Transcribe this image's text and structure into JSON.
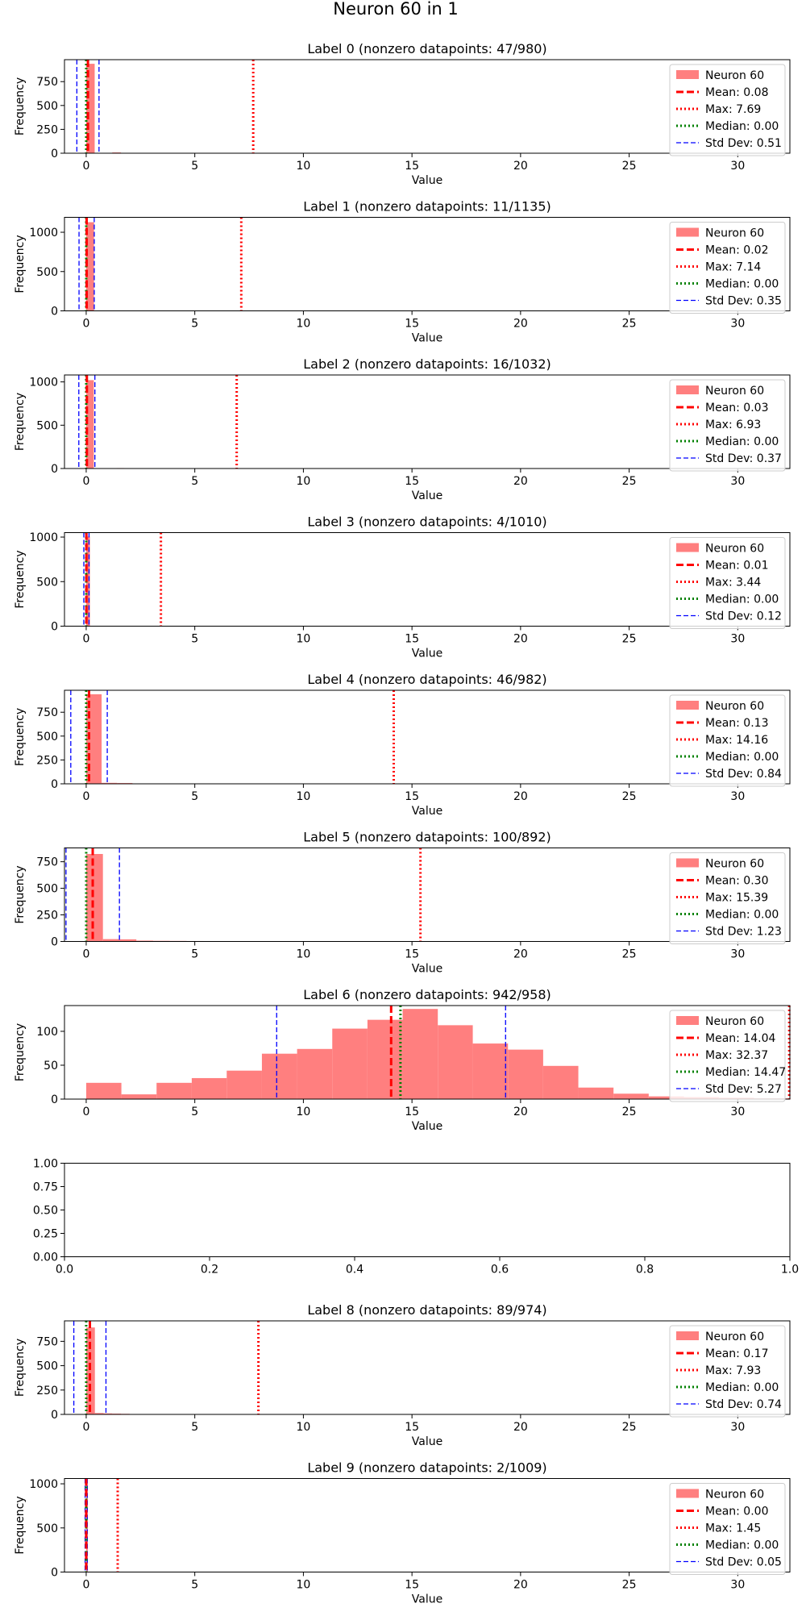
{
  "figure": {
    "suptitle": "Neuron 60 in 1",
    "colors": {
      "bar": "#ff7f7f",
      "mean": "#ff0000",
      "max": "#ff0000",
      "median": "#008000",
      "std": "#0000ff",
      "axis": "#000000",
      "legend_border": "#cccccc"
    }
  },
  "chart_data": [
    {
      "type": "bar",
      "title": "Label 0 (nonzero datapoints: 47/980)",
      "xlabel": "Value",
      "ylabel": "Frequency",
      "xlim": [
        -1,
        32.4
      ],
      "ylim": [
        0,
        980
      ],
      "xticks": [
        0,
        5,
        10,
        15,
        20,
        25,
        30
      ],
      "yticks": [
        0,
        250,
        500,
        750
      ],
      "bin_width": 0.39,
      "bars": [
        {
          "x0": 0.0,
          "x1": 0.39,
          "height": 937
        },
        {
          "x0": 1.2,
          "x1": 1.6,
          "height": 8
        },
        {
          "x0": 1.6,
          "x1": 2.0,
          "height": 4
        }
      ],
      "stats": {
        "mean": 0.08,
        "max": 7.69,
        "median": 0.0,
        "std": 0.51
      },
      "legend": {
        "location": "upper right",
        "entries": [
          "Neuron 60",
          "Mean: 0.08",
          "Max: 7.69",
          "Median: 0.00",
          "Std Dev: 0.51"
        ]
      }
    },
    {
      "type": "bar",
      "title": "Label 1 (nonzero datapoints: 11/1135)",
      "xlabel": "Value",
      "ylabel": "Frequency",
      "xlim": [
        -1,
        32.4
      ],
      "ylim": [
        0,
        1190
      ],
      "xticks": [
        0,
        5,
        10,
        15,
        20,
        25,
        30
      ],
      "yticks": [
        0,
        500,
        1000
      ],
      "bin_width": 0.36,
      "bars": [
        {
          "x0": 0.0,
          "x1": 0.36,
          "height": 1128
        }
      ],
      "stats": {
        "mean": 0.02,
        "max": 7.14,
        "median": 0.0,
        "std": 0.35
      },
      "legend": {
        "location": "upper right",
        "entries": [
          "Neuron 60",
          "Mean: 0.02",
          "Max: 7.14",
          "Median: 0.00",
          "Std Dev: 0.35"
        ]
      }
    },
    {
      "type": "bar",
      "title": "Label 2 (nonzero datapoints: 16/1032)",
      "xlabel": "Value",
      "ylabel": "Frequency",
      "xlim": [
        -1,
        32.4
      ],
      "ylim": [
        0,
        1080
      ],
      "xticks": [
        0,
        5,
        10,
        15,
        20,
        25,
        30
      ],
      "yticks": [
        0,
        500,
        1000
      ],
      "bin_width": 0.35,
      "bars": [
        {
          "x0": 0.0,
          "x1": 0.35,
          "height": 1020
        },
        {
          "x0": 1.4,
          "x1": 1.75,
          "height": 5
        }
      ],
      "stats": {
        "mean": 0.03,
        "max": 6.93,
        "median": 0.0,
        "std": 0.37
      },
      "legend": {
        "location": "upper right",
        "entries": [
          "Neuron 60",
          "Mean: 0.03",
          "Max: 6.93",
          "Median: 0.00",
          "Std Dev: 0.37"
        ]
      }
    },
    {
      "type": "bar",
      "title": "Label 3 (nonzero datapoints: 4/1010)",
      "xlabel": "Value",
      "ylabel": "Frequency",
      "xlim": [
        -1,
        32.4
      ],
      "ylim": [
        0,
        1050
      ],
      "xticks": [
        0,
        5,
        10,
        15,
        20,
        25,
        30
      ],
      "yticks": [
        0,
        500,
        1000
      ],
      "bin_width": 0.17,
      "bars": [
        {
          "x0": 0.0,
          "x1": 0.17,
          "height": 1006
        },
        {
          "x0": 1.4,
          "x1": 1.6,
          "height": 2
        },
        {
          "x0": 3.3,
          "x1": 3.45,
          "height": 2
        }
      ],
      "stats": {
        "mean": 0.01,
        "max": 3.44,
        "median": 0.0,
        "std": 0.12
      },
      "legend": {
        "location": "upper right",
        "entries": [
          "Neuron 60",
          "Mean: 0.01",
          "Max: 3.44",
          "Median: 0.00",
          "Std Dev: 0.12"
        ]
      }
    },
    {
      "type": "bar",
      "title": "Label 4 (nonzero datapoints: 46/982)",
      "xlabel": "Value",
      "ylabel": "Frequency",
      "xlim": [
        -1,
        32.4
      ],
      "ylim": [
        0,
        980
      ],
      "xticks": [
        0,
        5,
        10,
        15,
        20,
        25,
        30
      ],
      "yticks": [
        0,
        250,
        500,
        750
      ],
      "bin_width": 0.71,
      "bars": [
        {
          "x0": 0.0,
          "x1": 0.71,
          "height": 938
        },
        {
          "x0": 0.71,
          "x1": 1.42,
          "height": 10
        },
        {
          "x0": 1.42,
          "x1": 2.13,
          "height": 8
        },
        {
          "x0": 2.13,
          "x1": 2.84,
          "height": 3
        }
      ],
      "stats": {
        "mean": 0.13,
        "max": 14.16,
        "median": 0.0,
        "std": 0.84
      },
      "legend": {
        "location": "upper right",
        "entries": [
          "Neuron 60",
          "Mean: 0.13",
          "Max: 14.16",
          "Median: 0.00",
          "Std Dev: 0.84"
        ]
      }
    },
    {
      "type": "bar",
      "title": "Label 5 (nonzero datapoints: 100/892)",
      "xlabel": "Value",
      "ylabel": "Frequency",
      "xlim": [
        -1,
        32.4
      ],
      "ylim": [
        0,
        880
      ],
      "xticks": [
        0,
        5,
        10,
        15,
        20,
        25,
        30
      ],
      "yticks": [
        0,
        250,
        500,
        750
      ],
      "bin_width": 0.77,
      "bars": [
        {
          "x0": 0.0,
          "x1": 0.77,
          "height": 823
        },
        {
          "x0": 0.77,
          "x1": 1.54,
          "height": 22
        },
        {
          "x0": 1.54,
          "x1": 2.31,
          "height": 20
        },
        {
          "x0": 2.31,
          "x1": 3.08,
          "height": 8
        },
        {
          "x0": 3.08,
          "x1": 3.85,
          "height": 6
        },
        {
          "x0": 3.85,
          "x1": 4.62,
          "height": 5
        },
        {
          "x0": 4.62,
          "x1": 5.39,
          "height": 4
        },
        {
          "x0": 6.16,
          "x1": 6.93,
          "height": 3
        }
      ],
      "stats": {
        "mean": 0.3,
        "max": 15.39,
        "median": 0.0,
        "std": 1.23
      },
      "legend": {
        "location": "upper right",
        "entries": [
          "Neuron 60",
          "Mean: 0.30",
          "Max: 15.39",
          "Median: 0.00",
          "Std Dev: 1.23"
        ]
      }
    },
    {
      "type": "bar",
      "title": "Label 6 (nonzero datapoints: 942/958)",
      "xlabel": "Value",
      "ylabel": "Frequency",
      "xlim": [
        -1,
        32.4
      ],
      "ylim": [
        0,
        138
      ],
      "xticks": [
        0,
        5,
        10,
        15,
        20,
        25,
        30
      ],
      "yticks": [
        0,
        50,
        100
      ],
      "bin_width": 1.62,
      "bars": [
        {
          "x0": 0.0,
          "x1": 1.62,
          "height": 24
        },
        {
          "x0": 1.62,
          "x1": 3.24,
          "height": 7
        },
        {
          "x0": 3.24,
          "x1": 4.86,
          "height": 24
        },
        {
          "x0": 4.86,
          "x1": 6.47,
          "height": 31
        },
        {
          "x0": 6.47,
          "x1": 8.09,
          "height": 42
        },
        {
          "x0": 8.09,
          "x1": 9.71,
          "height": 67
        },
        {
          "x0": 9.71,
          "x1": 11.33,
          "height": 74
        },
        {
          "x0": 11.33,
          "x1": 12.95,
          "height": 104
        },
        {
          "x0": 12.95,
          "x1": 14.57,
          "height": 117
        },
        {
          "x0": 14.57,
          "x1": 16.19,
          "height": 133
        },
        {
          "x0": 16.19,
          "x1": 17.8,
          "height": 109
        },
        {
          "x0": 17.8,
          "x1": 19.42,
          "height": 82
        },
        {
          "x0": 19.42,
          "x1": 21.04,
          "height": 73
        },
        {
          "x0": 21.04,
          "x1": 22.66,
          "height": 49
        },
        {
          "x0": 22.66,
          "x1": 24.28,
          "height": 17
        },
        {
          "x0": 24.28,
          "x1": 25.9,
          "height": 8
        },
        {
          "x0": 25.9,
          "x1": 27.52,
          "height": 4
        },
        {
          "x0": 27.52,
          "x1": 29.13,
          "height": 3
        },
        {
          "x0": 29.13,
          "x1": 30.75,
          "height": 2
        },
        {
          "x0": 30.75,
          "x1": 32.37,
          "height": 1
        }
      ],
      "stats": {
        "mean": 14.04,
        "max": 32.37,
        "median": 14.47,
        "std": 5.27
      },
      "legend": {
        "location": "upper right",
        "entries": [
          "Neuron 60",
          "Mean: 14.04",
          "Max: 32.37",
          "Median: 14.47",
          "Std Dev: 5.27"
        ]
      }
    },
    {
      "type": "empty",
      "title": "",
      "xlim": [
        0,
        1
      ],
      "ylim": [
        0,
        1
      ],
      "xticks": [
        0.0,
        0.2,
        0.4,
        0.6,
        0.8,
        1.0
      ],
      "yticks": [
        0.0,
        0.25,
        0.5,
        0.75,
        1.0
      ],
      "xtick_labels": [
        "0.0",
        "0.2",
        "0.4",
        "0.6",
        "0.8",
        "1.0"
      ],
      "ytick_labels": [
        "0.00",
        "0.25",
        "0.50",
        "0.75",
        "1.00"
      ]
    },
    {
      "type": "bar",
      "title": "Label 8 (nonzero datapoints: 89/974)",
      "xlabel": "Value",
      "ylabel": "Frequency",
      "xlim": [
        -1,
        32.4
      ],
      "ylim": [
        0,
        960
      ],
      "xticks": [
        0,
        5,
        10,
        15,
        20,
        25,
        30
      ],
      "yticks": [
        0,
        250,
        500,
        750
      ],
      "bin_width": 0.4,
      "bars": [
        {
          "x0": 0.0,
          "x1": 0.4,
          "height": 892
        },
        {
          "x0": 0.4,
          "x1": 0.8,
          "height": 14
        },
        {
          "x0": 0.8,
          "x1": 1.2,
          "height": 10
        },
        {
          "x0": 1.2,
          "x1": 1.6,
          "height": 8
        },
        {
          "x0": 1.6,
          "x1": 2.0,
          "height": 6
        },
        {
          "x0": 2.0,
          "x1": 2.4,
          "height": 4
        },
        {
          "x0": 2.8,
          "x1": 3.2,
          "height": 3
        }
      ],
      "stats": {
        "mean": 0.17,
        "max": 7.93,
        "median": 0.0,
        "std": 0.74
      },
      "legend": {
        "location": "upper right",
        "entries": [
          "Neuron 60",
          "Mean: 0.17",
          "Max: 7.93",
          "Median: 0.00",
          "Std Dev: 0.74"
        ]
      }
    },
    {
      "type": "bar",
      "title": "Label 9 (nonzero datapoints: 2/1009)",
      "xlabel": "Value",
      "ylabel": "Frequency",
      "xlim": [
        -1,
        32.4
      ],
      "ylim": [
        0,
        1060
      ],
      "xticks": [
        0,
        5,
        10,
        15,
        20,
        25,
        30
      ],
      "yticks": [
        0,
        500,
        1000
      ],
      "bin_width": 0.07,
      "bars": [
        {
          "x0": 0.0,
          "x1": 0.07,
          "height": 1007
        }
      ],
      "stats": {
        "mean": 0.0,
        "max": 1.45,
        "median": 0.0,
        "std": 0.05
      },
      "legend": {
        "location": "upper right",
        "entries": [
          "Neuron 60",
          "Mean: 0.00",
          "Max: 1.45",
          "Median: 0.00",
          "Std Dev: 0.05"
        ]
      }
    }
  ]
}
